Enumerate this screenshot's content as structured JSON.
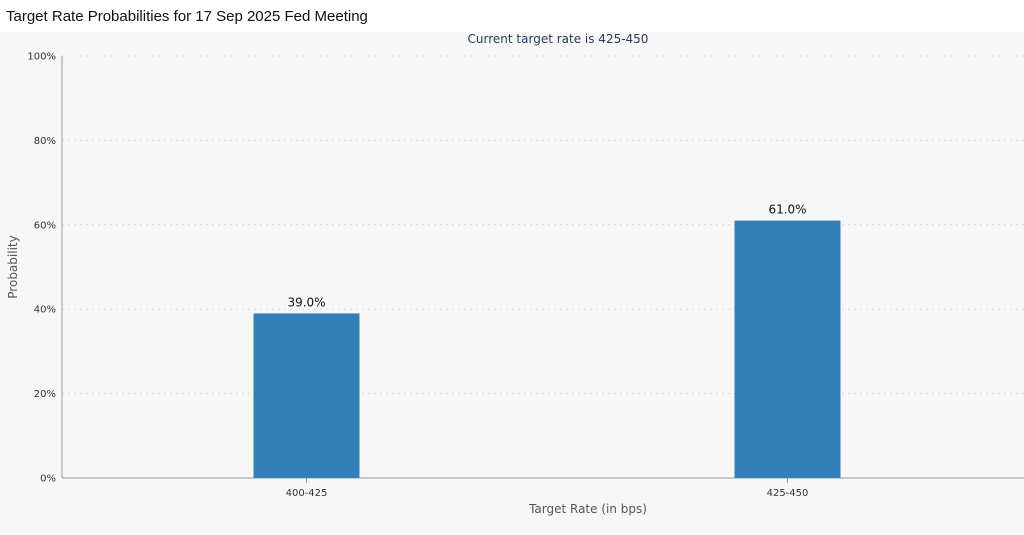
{
  "chart_data": {
    "type": "bar",
    "title": "Target Rate Probabilities for 17 Sep 2025 Fed Meeting",
    "subtitle": "Current target rate is 425-450",
    "xlabel": "Target Rate (in bps)",
    "ylabel": "Probability",
    "categories": [
      "400-425",
      "425-450"
    ],
    "values": [
      39.0,
      61.0
    ],
    "data_labels": [
      "39.0%",
      "61.0%"
    ],
    "ylim": [
      0,
      100
    ],
    "yticks": [
      0,
      20,
      40,
      60,
      80,
      100
    ],
    "ytick_labels": [
      "0%",
      "20%",
      "40%",
      "60%",
      "80%",
      "100%"
    ],
    "grid": true,
    "legend": "none",
    "bar_color": "#337fb8"
  }
}
